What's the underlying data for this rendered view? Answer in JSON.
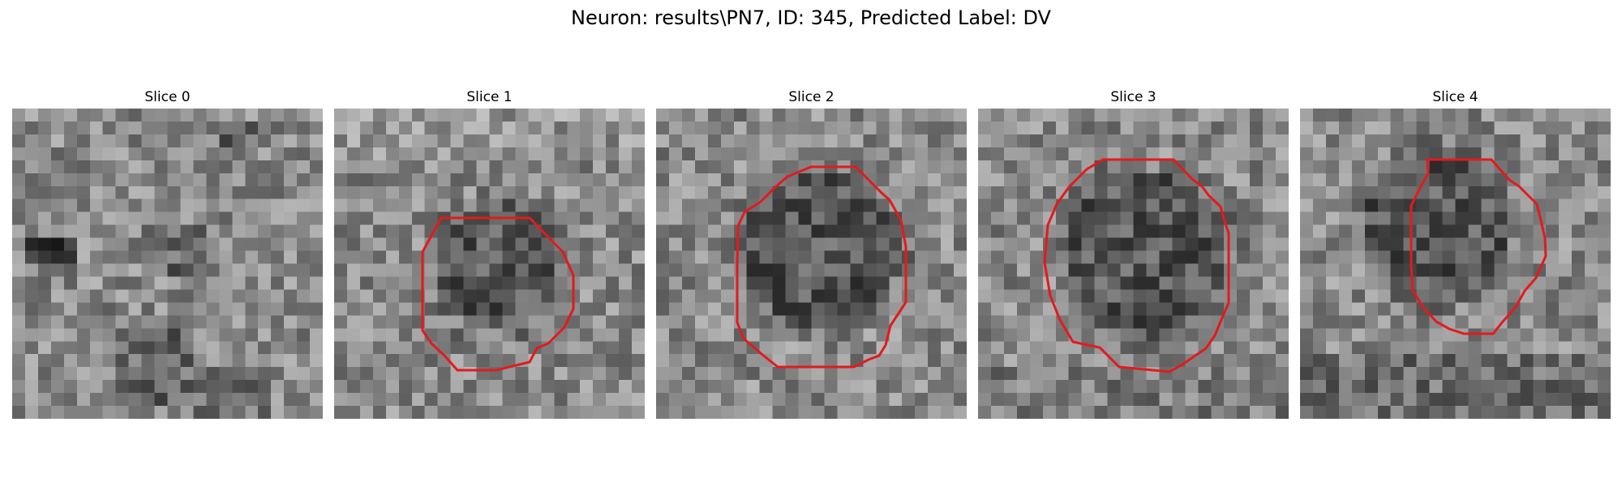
{
  "figure": {
    "title": "Neuron: results\\PN7, ID: 345, Predicted Label: DV",
    "outline_color": "#e31a1c"
  },
  "panels": [
    {
      "title": "Slice 0",
      "grid": 24,
      "has_contour": false
    },
    {
      "title": "Slice 1",
      "grid": 24,
      "has_contour": true
    },
    {
      "title": "Slice 2",
      "grid": 24,
      "has_contour": true
    },
    {
      "title": "Slice 3",
      "grid": 24,
      "has_contour": true
    },
    {
      "title": "Slice 4",
      "grid": 24,
      "has_contour": true
    }
  ]
}
